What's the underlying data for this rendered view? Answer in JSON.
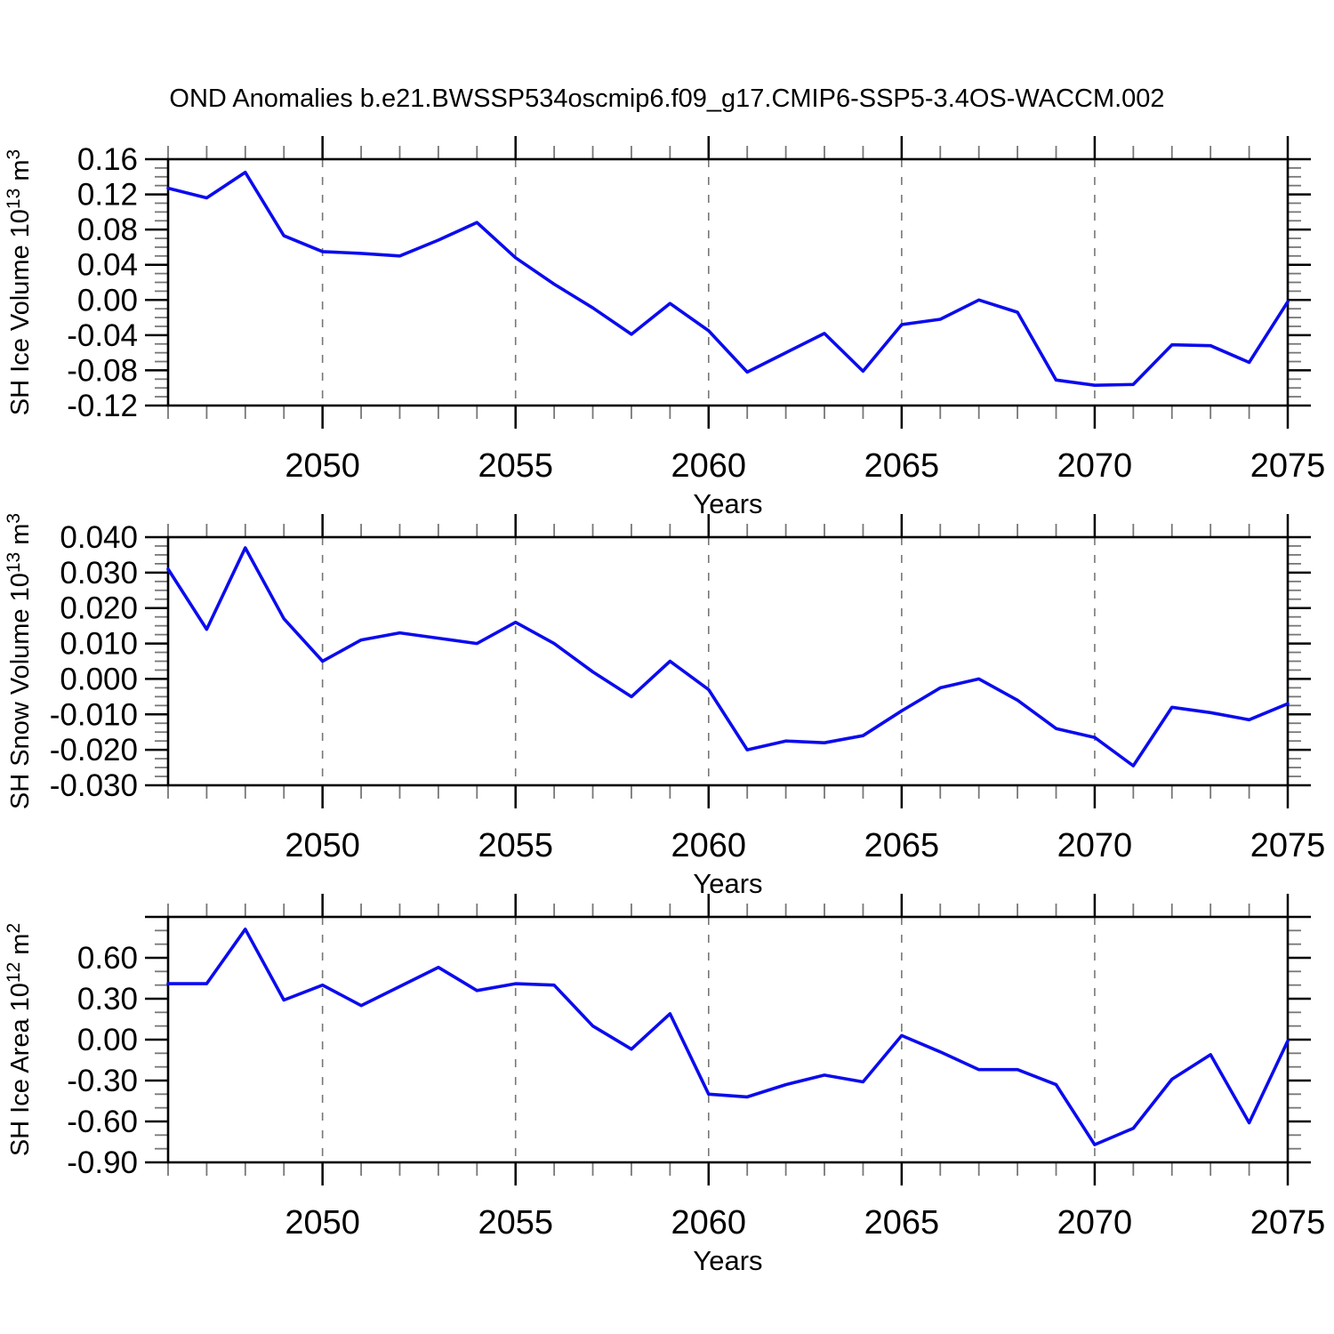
{
  "title": "OND Anomalies b.e21.BWSSP534oscmip6.f09_g17.CMIP6-SSP5-3.4OS-WACCM.002",
  "xlabel": "Years",
  "line_color": "#0b0bee",
  "gridline_color": "#777777",
  "x_tick_labels": [
    {
      "v": 2050,
      "label": "2050"
    },
    {
      "v": 2055,
      "label": "2055"
    },
    {
      "v": 2060,
      "label": "2060"
    },
    {
      "v": 2065,
      "label": "2065"
    },
    {
      "v": 2070,
      "label": "2070"
    },
    {
      "v": 2075,
      "label": "2075"
    }
  ],
  "gridline_years": [
    2050,
    2055,
    2060,
    2065,
    2070
  ],
  "chart_data": [
    {
      "type": "line",
      "ylabel": "SH Ice Volume 10¹³ m³",
      "ylabel_parts": [
        [
          "SH Ice Volume 10",
          0
        ],
        [
          "13",
          1
        ],
        [
          " m",
          0
        ],
        [
          "3",
          1
        ]
      ],
      "xlabel": "Years",
      "xlim": [
        2046,
        2075
      ],
      "ylim": [
        -0.12,
        0.16
      ],
      "y_minor_step": 0.01,
      "y_ticks": [
        {
          "v": 0.16,
          "label": "0.16"
        },
        {
          "v": 0.12,
          "label": "0.12"
        },
        {
          "v": 0.08,
          "label": "0.08"
        },
        {
          "v": 0.04,
          "label": "0.04"
        },
        {
          "v": 0.0,
          "label": "0.00"
        },
        {
          "v": -0.04,
          "label": "-0.04"
        },
        {
          "v": -0.08,
          "label": "-0.08"
        },
        {
          "v": -0.12,
          "label": "-0.12"
        }
      ],
      "x": [
        2046,
        2047,
        2048,
        2049,
        2050,
        2051,
        2052,
        2053,
        2054,
        2055,
        2056,
        2057,
        2058,
        2059,
        2060,
        2061,
        2062,
        2063,
        2064,
        2065,
        2066,
        2067,
        2068,
        2069,
        2070,
        2071,
        2072,
        2073,
        2074,
        2075
      ],
      "values": [
        0.127,
        0.116,
        0.145,
        0.073,
        0.055,
        0.053,
        0.05,
        0.068,
        0.088,
        0.048,
        0.018,
        -0.009,
        -0.039,
        -0.004,
        -0.035,
        -0.082,
        -0.06,
        -0.038,
        -0.081,
        -0.028,
        -0.022,
        0.0,
        -0.014,
        -0.091,
        -0.097,
        -0.096,
        -0.051,
        -0.052,
        -0.071,
        -0.002
      ]
    },
    {
      "type": "line",
      "ylabel": "SH Snow Volume 10¹³ m³",
      "ylabel_parts": [
        [
          "SH Snow Volume 10",
          0
        ],
        [
          "13",
          1
        ],
        [
          " m",
          0
        ],
        [
          "3",
          1
        ]
      ],
      "xlabel": "Years",
      "xlim": [
        2046,
        2075
      ],
      "ylim": [
        -0.03,
        0.04
      ],
      "y_minor_step": 0.0025,
      "y_ticks": [
        {
          "v": 0.04,
          "label": "0.040"
        },
        {
          "v": 0.03,
          "label": "0.030"
        },
        {
          "v": 0.02,
          "label": "0.020"
        },
        {
          "v": 0.01,
          "label": "0.010"
        },
        {
          "v": 0.0,
          "label": "0.000"
        },
        {
          "v": -0.01,
          "label": "-0.010"
        },
        {
          "v": -0.02,
          "label": "-0.020"
        },
        {
          "v": -0.03,
          "label": "-0.030"
        }
      ],
      "x": [
        2046,
        2047,
        2048,
        2049,
        2050,
        2051,
        2052,
        2053,
        2054,
        2055,
        2056,
        2057,
        2058,
        2059,
        2060,
        2061,
        2062,
        2063,
        2064,
        2065,
        2066,
        2067,
        2068,
        2069,
        2070,
        2071,
        2072,
        2073,
        2074,
        2075
      ],
      "values": [
        0.031,
        0.014,
        0.037,
        0.017,
        0.005,
        0.011,
        0.013,
        0.0115,
        0.01,
        0.016,
        0.01,
        0.002,
        -0.005,
        0.005,
        -0.003,
        -0.02,
        -0.0175,
        -0.018,
        -0.016,
        -0.009,
        -0.0025,
        0.0,
        -0.006,
        -0.014,
        -0.0165,
        -0.0245,
        -0.008,
        -0.0095,
        -0.0115,
        -0.007
      ]
    },
    {
      "type": "line",
      "ylabel": "SH Ice Area 10¹² m²",
      "ylabel_parts": [
        [
          "SH Ice Area 10",
          0
        ],
        [
          "12",
          1
        ],
        [
          " m",
          0
        ],
        [
          "2",
          1
        ]
      ],
      "xlabel": "Years",
      "xlim": [
        2046,
        2075
      ],
      "ylim": [
        -0.9,
        0.9
      ],
      "y_minor_step": 0.1,
      "y_ticks": [
        {
          "v": 0.9,
          "label": ""
        },
        {
          "v": 0.6,
          "label": "0.60"
        },
        {
          "v": 0.3,
          "label": "0.30"
        },
        {
          "v": 0.0,
          "label": "0.00"
        },
        {
          "v": -0.3,
          "label": "-0.30"
        },
        {
          "v": -0.6,
          "label": "-0.60"
        },
        {
          "v": -0.9,
          "label": "-0.90"
        }
      ],
      "x": [
        2046,
        2047,
        2048,
        2049,
        2050,
        2051,
        2052,
        2053,
        2054,
        2055,
        2056,
        2057,
        2058,
        2059,
        2060,
        2061,
        2062,
        2063,
        2064,
        2065,
        2066,
        2067,
        2068,
        2069,
        2070,
        2071,
        2072,
        2073,
        2074,
        2075
      ],
      "values": [
        0.41,
        0.41,
        0.81,
        0.29,
        0.4,
        0.25,
        0.39,
        0.53,
        0.36,
        0.41,
        0.4,
        0.1,
        -0.07,
        0.19,
        -0.4,
        -0.42,
        -0.33,
        -0.26,
        -0.31,
        0.03,
        -0.09,
        -0.22,
        -0.22,
        -0.33,
        -0.77,
        -0.65,
        -0.29,
        -0.11,
        -0.61,
        -0.01
      ]
    }
  ]
}
